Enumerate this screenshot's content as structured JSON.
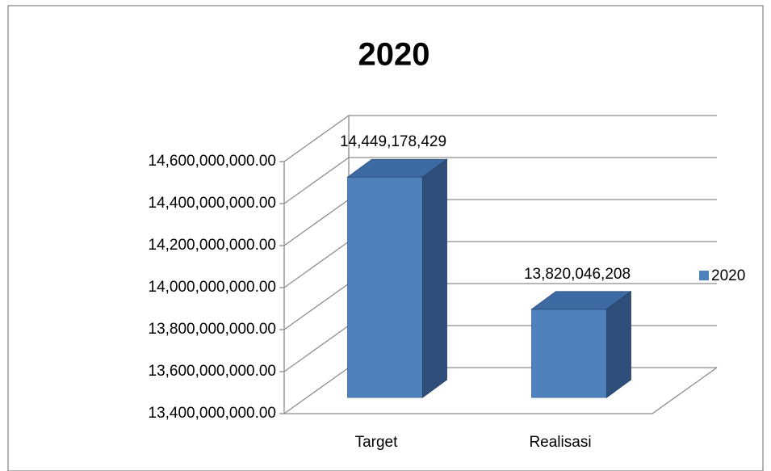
{
  "chart_data": {
    "type": "bar3d",
    "title": "2020",
    "categories": [
      "Target",
      "Realisasi"
    ],
    "series": [
      {
        "name": "2020",
        "color": "#4f81bd",
        "values": [
          14449178429,
          13820046208
        ],
        "value_labels": [
          "14,449,178,429",
          "13,820,046,208"
        ]
      }
    ],
    "ylim": [
      13400000000,
      14600000000
    ],
    "yticks": [
      {
        "value": 13400000000,
        "label": "13,400,000,000.00"
      },
      {
        "value": 13600000000,
        "label": "13,600,000,000.00"
      },
      {
        "value": 13800000000,
        "label": "13,800,000,000.00"
      },
      {
        "value": 14000000000,
        "label": "14,000,000,000.00"
      },
      {
        "value": 14200000000,
        "label": "14,200,000,000.00"
      },
      {
        "value": 14400000000,
        "label": "14,400,000,000.00"
      },
      {
        "value": 14600000000,
        "label": "14,600,000,000.00"
      }
    ],
    "grid": true,
    "legend": "right"
  }
}
